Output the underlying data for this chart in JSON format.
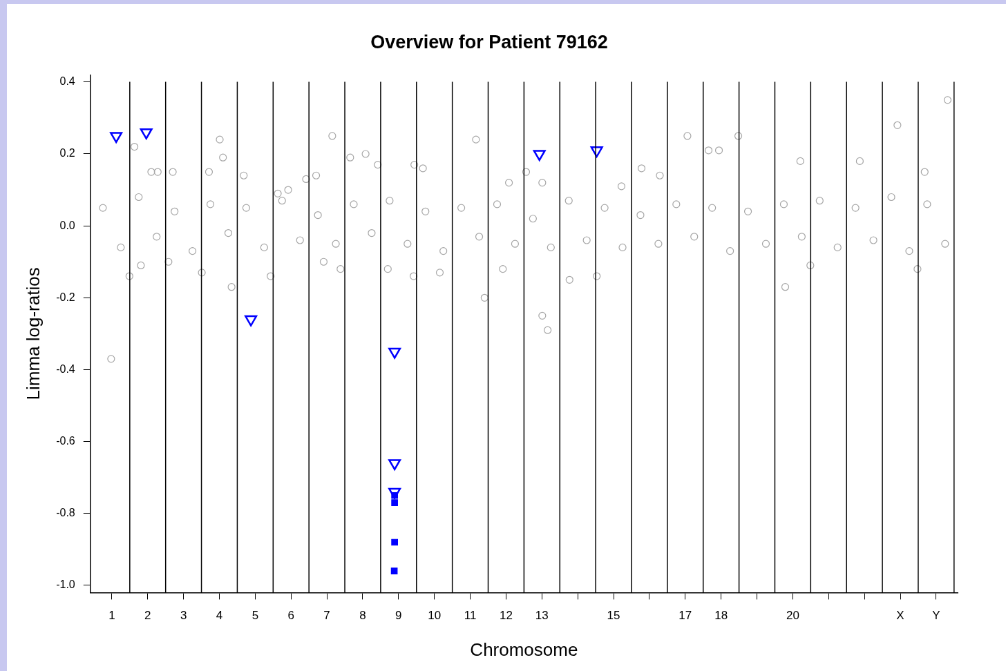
{
  "chart_data": {
    "type": "scatter",
    "title": "Overview for Patient 79162",
    "xlabel": "Chromosome",
    "ylabel": "Limma log-ratios",
    "xlim": [
      0.4,
      24.6
    ],
    "ylim": [
      -1.02,
      0.42
    ],
    "xticks": [
      1,
      2,
      3,
      4,
      5,
      6,
      7,
      8,
      9,
      10,
      11,
      12,
      13,
      {
        "value": 14,
        "label": null
      },
      15,
      {
        "value": 16,
        "label": null
      },
      17,
      18,
      {
        "value": 19,
        "label": null
      },
      20,
      {
        "value": 21,
        "label": null
      },
      {
        "value": 22,
        "label": null
      },
      {
        "value": 23,
        "label": "X"
      },
      {
        "value": 24,
        "label": "Y"
      }
    ],
    "yticks": [
      {
        "value": -1.0,
        "label": "-1.0"
      },
      {
        "value": -0.8,
        "label": "-0.8"
      },
      {
        "value": -0.6,
        "label": "-0.6"
      },
      {
        "value": -0.4,
        "label": "-0.4"
      },
      {
        "value": -0.2,
        "label": "-0.2"
      },
      {
        "value": 0.0,
        "label": "0.0"
      },
      {
        "value": 0.2,
        "label": "0.2"
      },
      {
        "value": 0.4,
        "label": "0.4"
      }
    ],
    "grid": false,
    "legend": false,
    "ref_lines": [
      {
        "axis": "x",
        "value": 1.5,
        "color": "#000000"
      },
      {
        "axis": "x",
        "value": 2.5,
        "color": "#000000"
      },
      {
        "axis": "x",
        "value": 3.5,
        "color": "#000000"
      },
      {
        "axis": "x",
        "value": 4.5,
        "color": "#000000"
      },
      {
        "axis": "x",
        "value": 5.5,
        "color": "#000000"
      },
      {
        "axis": "x",
        "value": 6.5,
        "color": "#000000"
      },
      {
        "axis": "x",
        "value": 7.5,
        "color": "#000000"
      },
      {
        "axis": "x",
        "value": 8.5,
        "color": "#000000"
      },
      {
        "axis": "x",
        "value": 9.5,
        "color": "#000000"
      },
      {
        "axis": "x",
        "value": 10.5,
        "color": "#000000"
      },
      {
        "axis": "x",
        "value": 11.5,
        "color": "#000000"
      },
      {
        "axis": "x",
        "value": 12.5,
        "color": "#000000"
      },
      {
        "axis": "x",
        "value": 13.5,
        "color": "#000000"
      },
      {
        "axis": "x",
        "value": 14.5,
        "color": "#000000"
      },
      {
        "axis": "x",
        "value": 15.5,
        "color": "#000000"
      },
      {
        "axis": "x",
        "value": 16.5,
        "color": "#000000"
      },
      {
        "axis": "x",
        "value": 17.5,
        "color": "#000000"
      },
      {
        "axis": "x",
        "value": 18.5,
        "color": "#000000"
      },
      {
        "axis": "x",
        "value": 19.5,
        "color": "#000000"
      },
      {
        "axis": "x",
        "value": 20.5,
        "color": "#000000"
      },
      {
        "axis": "x",
        "value": 21.5,
        "color": "#000000"
      },
      {
        "axis": "x",
        "value": 22.5,
        "color": "#000000"
      },
      {
        "axis": "x",
        "value": 23.5,
        "color": "#000000"
      },
      {
        "axis": "x",
        "value": 24.5,
        "color": "#000000"
      }
    ],
    "series": [
      {
        "color": "#a6a6a6",
        "marker": "circle",
        "x": [
          0.98,
          1.63,
          1.49,
          2.1,
          2.28,
          2.7,
          2.58,
          1.81,
          4.01,
          4.1,
          3.71,
          4.34,
          3.51,
          4.68,
          7.15,
          7.65,
          8.08,
          8.42,
          9.44,
          9.68,
          7.38,
          8.7,
          9.42,
          11.16,
          11.4,
          12.56,
          13.01,
          13.01,
          13.16,
          13.77,
          14.53,
          15.78,
          17.06,
          17.65,
          17.94,
          18.48,
          19.79,
          22.92,
          24.32,
          23.68,
          21.87,
          20.21,
          20.49,
          23.48,
          16.29,
          15.22,
          12.08,
          5.92,
          6.42,
          6.7,
          5.63,
          5.43,
          6.91,
          10.15,
          11.91,
          0.75,
          1.25,
          1.75,
          2.25,
          2.75,
          3.25,
          3.75,
          4.25,
          4.75,
          5.25,
          5.75,
          6.25,
          6.75,
          7.25,
          7.75,
          8.25,
          8.75,
          9.25,
          9.75,
          10.25,
          10.75,
          11.25,
          11.75,
          12.25,
          12.75,
          13.25,
          13.75,
          14.25,
          14.75,
          15.25,
          15.75,
          16.25,
          16.75,
          17.25,
          17.75,
          18.25,
          18.75,
          19.25,
          19.75,
          20.25,
          20.75,
          21.25,
          21.75,
          22.25,
          22.75,
          23.25,
          23.75,
          24.25
        ],
        "values": [
          -0.37,
          0.22,
          -0.14,
          0.15,
          0.15,
          0.15,
          -0.1,
          -0.11,
          0.24,
          0.19,
          0.15,
          -0.17,
          -0.13,
          0.14,
          0.25,
          0.19,
          0.2,
          0.17,
          0.17,
          0.16,
          -0.12,
          -0.12,
          -0.14,
          0.24,
          -0.2,
          0.15,
          0.12,
          -0.25,
          -0.29,
          -0.15,
          -0.14,
          0.16,
          0.25,
          0.21,
          0.21,
          0.25,
          -0.17,
          0.28,
          0.35,
          0.15,
          0.18,
          0.18,
          -0.11,
          -0.12,
          0.14,
          0.11,
          0.12,
          0.1,
          0.13,
          0.14,
          0.09,
          -0.14,
          -0.1,
          -0.13,
          -0.12,
          0.05,
          -0.06,
          0.08,
          -0.03,
          0.04,
          -0.07,
          0.06,
          -0.02,
          0.05,
          -0.06,
          0.07,
          -0.04,
          0.03,
          -0.05,
          0.06,
          -0.02,
          0.07,
          -0.05,
          0.04,
          -0.07,
          0.05,
          -0.03,
          0.06,
          -0.05,
          0.02,
          -0.06,
          0.07,
          -0.04,
          0.05,
          -0.06,
          0.03,
          -0.05,
          0.06,
          -0.03,
          0.05,
          -0.07,
          0.04,
          -0.05,
          0.06,
          -0.03,
          0.07,
          -0.06,
          0.05,
          -0.04,
          0.08,
          -0.07,
          0.06,
          -0.05
        ]
      },
      {
        "color": "#0000ff",
        "marker": "triangle",
        "x": [
          1.12,
          1.96,
          4.88,
          8.89,
          12.93,
          14.53,
          8.89,
          8.89
        ],
        "values": [
          0.25,
          0.26,
          -0.26,
          -0.35,
          0.2,
          0.21,
          -0.66,
          -0.74
        ]
      },
      {
        "color": "#0000ff",
        "marker": "square",
        "x": [
          8.89,
          8.89,
          8.89,
          8.88
        ],
        "values": [
          -0.75,
          -0.77,
          -0.88,
          -0.96
        ]
      }
    ]
  }
}
